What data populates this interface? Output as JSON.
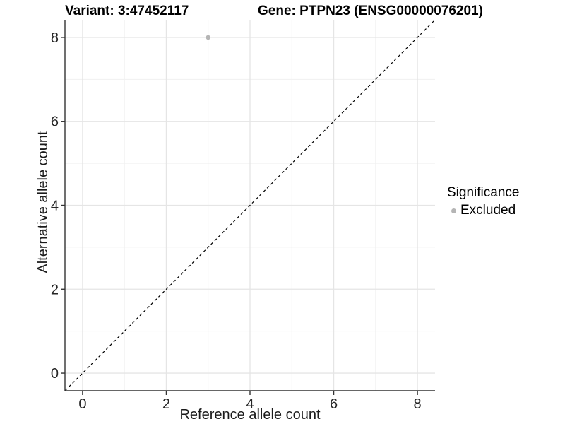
{
  "header": {
    "variant_title": "Variant: 3:47452117",
    "gene_title": "Gene: PTPN23 (ENSG00000076201)"
  },
  "axes": {
    "x_label": "Reference allele count",
    "y_label": "Alternative allele count"
  },
  "legend": {
    "title": "Significance",
    "items": [
      {
        "label": "Excluded",
        "color": "#b5b5b5"
      }
    ]
  },
  "colors": {
    "background": "#ffffff",
    "grid_major": "#e5e5e5",
    "grid_minor": "#f0f0f0",
    "axis_line": "#333333",
    "tick_label": "#262626",
    "reference_line": "#000000",
    "excluded_point": "#b5b5b5"
  },
  "chart_data": {
    "type": "scatter",
    "title": "Variant: 3:47452117    Gene: PTPN23 (ENSG00000076201)",
    "xlabel": "Reference allele count",
    "ylabel": "Alternative allele count",
    "xlim": [
      -0.42,
      8.42
    ],
    "ylim": [
      -0.42,
      8.42
    ],
    "x_ticks": [
      0,
      2,
      4,
      6,
      8
    ],
    "y_ticks": [
      0,
      2,
      4,
      6,
      8
    ],
    "x_minor_ticks": [
      1,
      3,
      5,
      7
    ],
    "y_minor_ticks": [
      1,
      3,
      5,
      7
    ],
    "grid": true,
    "legend_position": "right",
    "legend_title": "Significance",
    "series": [
      {
        "name": "Excluded",
        "color": "#b5b5b5",
        "points": [
          {
            "x": 3,
            "y": 8
          }
        ]
      }
    ],
    "reference_line": {
      "kind": "identity",
      "style": "dashed",
      "color": "#000000"
    }
  }
}
